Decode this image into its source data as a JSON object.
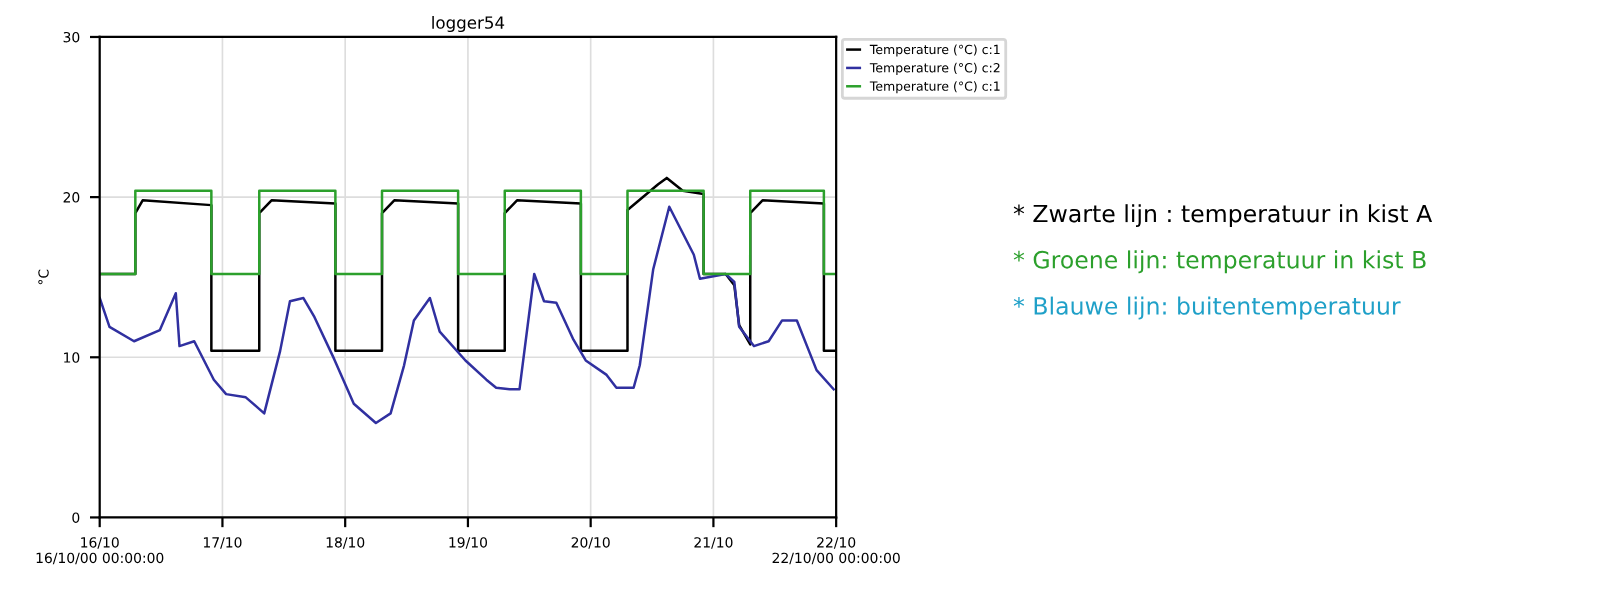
{
  "chart_data": {
    "type": "line",
    "title": "logger54",
    "ylabel": "°C",
    "xlim": [
      "2000-10-16T00:00",
      "2000-10-22T00:00"
    ],
    "xticks": [
      {
        "value": "2000-10-16T00:00",
        "label": "16/10\n16/10/00 00:00:00"
      },
      {
        "value": "2000-10-17T00:00",
        "label": "17/10"
      },
      {
        "value": "2000-10-18T00:00",
        "label": "18/10"
      },
      {
        "value": "2000-10-19T00:00",
        "label": "19/10"
      },
      {
        "value": "2000-10-20T00:00",
        "label": "20/10"
      },
      {
        "value": "2000-10-21T00:00",
        "label": "21/10"
      },
      {
        "value": "2000-10-22T00:00",
        "label": "22/10\n22/10/00 00:00:00"
      }
    ],
    "ylim": [
      0,
      30
    ],
    "yticks": [
      0,
      10,
      20,
      30
    ],
    "grid": true,
    "legend": "top right",
    "marker": "none",
    "line_style": "solid",
    "series": [
      {
        "name": "Temperature (°C) c:1",
        "color": "#000000",
        "x": [
          "2000-10-16T00:00",
          "2000-10-16T06:58",
          "2000-10-16T06:58",
          "2000-10-16T08:24",
          "2000-10-16T21:50",
          "2000-10-16T21:50",
          "2000-10-17T07:12",
          "2000-10-17T07:12",
          "2000-10-17T09:36",
          "2000-10-17T22:05",
          "2000-10-17T22:05",
          "2000-10-18T07:12",
          "2000-10-18T07:12",
          "2000-10-18T09:36",
          "2000-10-18T22:05",
          "2000-10-18T22:05",
          "2000-10-19T07:12",
          "2000-10-19T07:12",
          "2000-10-19T09:36",
          "2000-10-19T22:05",
          "2000-10-19T22:05",
          "2000-10-20T07:12",
          "2000-10-20T07:12",
          "2000-10-20T13:12",
          "2000-10-20T14:53",
          "2000-10-20T18:00",
          "2000-10-20T22:05",
          "2000-10-20T22:05",
          "2000-10-21T02:24",
          "2000-10-21T04:05",
          "2000-10-21T05:02",
          "2000-10-21T07:12",
          "2000-10-21T07:12",
          "2000-10-21T09:36",
          "2000-10-21T21:36",
          "2000-10-21T21:36",
          "2000-10-22T00:00"
        ],
        "values": [
          15.2,
          15.2,
          19.0,
          19.8,
          19.5,
          10.4,
          10.4,
          19.0,
          19.8,
          19.6,
          10.4,
          10.4,
          19.0,
          19.8,
          19.6,
          10.4,
          10.4,
          19.0,
          19.8,
          19.6,
          10.4,
          10.4,
          19.2,
          20.8,
          21.2,
          20.4,
          20.2,
          15.2,
          15.2,
          14.5,
          12.0,
          10.8,
          19.0,
          19.8,
          19.6,
          10.4,
          10.4
        ]
      },
      {
        "name": "Temperature (°C) c:2",
        "color": "#3030a0",
        "x": [
          "2000-10-16T00:00",
          "2000-10-16T01:55",
          "2000-10-16T06:43",
          "2000-10-16T11:46",
          "2000-10-16T14:53",
          "2000-10-16T15:36",
          "2000-10-16T18:29",
          "2000-10-16T22:19",
          "2000-10-17T00:43",
          "2000-10-17T04:34",
          "2000-10-17T08:10",
          "2000-10-17T11:17",
          "2000-10-17T13:12",
          "2000-10-17T15:50",
          "2000-10-17T18:00",
          "2000-10-17T21:50",
          "2000-10-18T01:41",
          "2000-10-18T06:00",
          "2000-10-18T08:53",
          "2000-10-18T11:31",
          "2000-10-18T13:26",
          "2000-10-18T16:34",
          "2000-10-18T18:29",
          "2000-10-18T23:31",
          "2000-10-19T03:36",
          "2000-10-19T05:31",
          "2000-10-19T08:10",
          "2000-10-19T10:05",
          "2000-10-19T12:58",
          "2000-10-19T14:53",
          "2000-10-19T17:17",
          "2000-10-19T20:38",
          "2000-10-19T23:02",
          "2000-10-20T03:07",
          "2000-10-20T05:02",
          "2000-10-20T08:24",
          "2000-10-20T09:36",
          "2000-10-20T12:14",
          "2000-10-20T15:22",
          "2000-10-20T20:10",
          "2000-10-20T21:22",
          "2000-10-21T02:24",
          "2000-10-21T04:05",
          "2000-10-21T05:02",
          "2000-10-21T07:55",
          "2000-10-21T10:48",
          "2000-10-21T13:26",
          "2000-10-21T16:19",
          "2000-10-21T20:10",
          "2000-10-21T23:31"
        ],
        "values": [
          13.7,
          11.9,
          11.0,
          11.7,
          14.0,
          10.7,
          11.0,
          8.6,
          7.7,
          7.5,
          6.5,
          10.4,
          13.5,
          13.7,
          12.5,
          9.9,
          7.1,
          5.9,
          6.5,
          9.5,
          12.3,
          13.7,
          11.6,
          9.8,
          8.6,
          8.1,
          8.0,
          8.0,
          15.2,
          13.5,
          13.4,
          11.1,
          9.8,
          8.9,
          8.1,
          8.1,
          9.5,
          15.5,
          19.4,
          16.4,
          14.9,
          15.2,
          14.7,
          11.9,
          10.7,
          11.0,
          12.3,
          12.3,
          9.2,
          8.0
        ]
      },
      {
        "name": "Temperature (°C) c:1",
        "color": "#2ca02c",
        "x": [
          "2000-10-16T00:00",
          "2000-10-16T06:58",
          "2000-10-16T06:58",
          "2000-10-16T21:50",
          "2000-10-16T21:50",
          "2000-10-17T07:12",
          "2000-10-17T07:12",
          "2000-10-17T22:05",
          "2000-10-17T22:05",
          "2000-10-18T07:12",
          "2000-10-18T07:12",
          "2000-10-18T22:05",
          "2000-10-18T22:05",
          "2000-10-19T07:12",
          "2000-10-19T07:12",
          "2000-10-19T22:05",
          "2000-10-19T22:05",
          "2000-10-20T07:12",
          "2000-10-20T07:12",
          "2000-10-20T22:05",
          "2000-10-20T22:05",
          "2000-10-21T07:12",
          "2000-10-21T07:12",
          "2000-10-21T21:36",
          "2000-10-21T21:36",
          "2000-10-22T00:00"
        ],
        "values": [
          15.2,
          15.2,
          20.4,
          20.4,
          15.2,
          15.2,
          20.4,
          20.4,
          15.2,
          15.2,
          20.4,
          20.4,
          15.2,
          15.2,
          20.4,
          20.4,
          15.2,
          15.2,
          20.4,
          20.4,
          15.2,
          15.2,
          20.4,
          20.4,
          15.2,
          15.2
        ]
      }
    ],
    "annotations": [
      "* Zwarte lijn : temperatuur in kist A",
      "* Groene lijn: temperatuur in kist B",
      "* Blauwe lijn: buitentemperatuur"
    ]
  }
}
